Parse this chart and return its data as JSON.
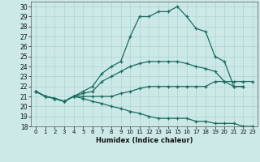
{
  "xlabel": "Humidex (Indice chaleur)",
  "xlim": [
    -0.5,
    23.5
  ],
  "ylim": [
    18,
    30.5
  ],
  "yticks": [
    18,
    19,
    20,
    21,
    22,
    23,
    24,
    25,
    26,
    27,
    28,
    29,
    30
  ],
  "xticks": [
    0,
    1,
    2,
    3,
    4,
    5,
    6,
    7,
    8,
    9,
    10,
    11,
    12,
    13,
    14,
    15,
    16,
    17,
    18,
    19,
    20,
    21,
    22,
    23
  ],
  "bg_color": "#cce9e7",
  "grid_color": "#aad4d2",
  "line_color": "#1a6b5e",
  "series1_x": [
    0,
    1,
    2,
    3,
    4,
    5,
    6,
    7,
    8,
    9,
    10,
    11,
    12,
    13,
    14,
    15,
    16,
    17,
    18,
    19,
    20,
    21,
    22
  ],
  "series1_y": [
    21.5,
    21.0,
    20.8,
    20.5,
    21.0,
    21.5,
    22.0,
    23.3,
    24.0,
    24.5,
    27.0,
    29.0,
    29.0,
    29.5,
    29.5,
    30.0,
    29.0,
    27.8,
    27.5,
    25.0,
    24.5,
    22.0,
    22.0
  ],
  "series2_x": [
    0,
    1,
    2,
    3,
    4,
    5,
    6,
    7,
    8,
    9,
    10,
    11,
    12,
    13,
    14,
    15,
    16,
    17,
    18,
    19,
    20,
    21,
    22
  ],
  "series2_y": [
    21.5,
    21.0,
    20.8,
    20.5,
    21.0,
    21.3,
    21.5,
    22.5,
    23.0,
    23.5,
    24.0,
    24.3,
    24.5,
    24.5,
    24.5,
    24.5,
    24.3,
    24.0,
    23.8,
    23.5,
    22.5,
    22.0,
    22.0
  ],
  "series3_x": [
    0,
    1,
    2,
    3,
    4,
    5,
    6,
    7,
    8,
    9,
    10,
    11,
    12,
    13,
    14,
    15,
    16,
    17,
    18,
    19,
    20,
    21,
    22,
    23
  ],
  "series3_y": [
    21.5,
    21.0,
    20.8,
    20.5,
    21.0,
    21.0,
    21.0,
    21.0,
    21.0,
    21.3,
    21.5,
    21.8,
    22.0,
    22.0,
    22.0,
    22.0,
    22.0,
    22.0,
    22.0,
    22.5,
    22.5,
    22.5,
    22.5,
    22.5
  ],
  "series4_x": [
    0,
    1,
    2,
    3,
    4,
    5,
    6,
    7,
    8,
    9,
    10,
    11,
    12,
    13,
    14,
    15,
    16,
    17,
    18,
    19,
    20,
    21,
    22,
    23
  ],
  "series4_y": [
    21.5,
    21.0,
    20.8,
    20.5,
    21.0,
    20.8,
    20.5,
    20.3,
    20.0,
    19.8,
    19.5,
    19.3,
    19.0,
    18.8,
    18.8,
    18.8,
    18.8,
    18.5,
    18.5,
    18.3,
    18.3,
    18.3,
    18.0,
    18.0
  ]
}
